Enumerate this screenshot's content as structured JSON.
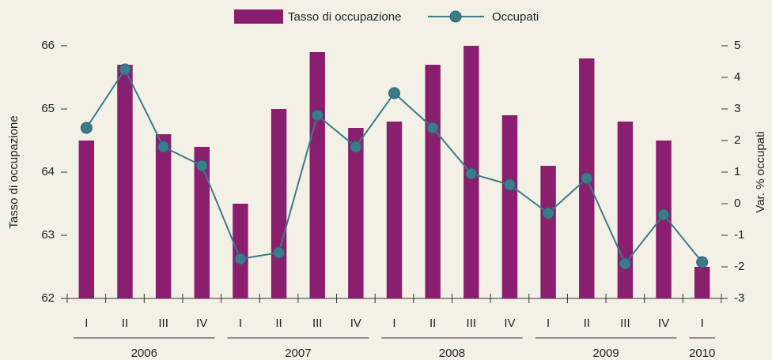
{
  "chart_data": {
    "type": "combo",
    "groups": [
      {
        "label": "2006",
        "categories": [
          "I",
          "II",
          "III",
          "IV"
        ]
      },
      {
        "label": "2007",
        "categories": [
          "I",
          "II",
          "III",
          "IV"
        ]
      },
      {
        "label": "2008",
        "categories": [
          "I",
          "II",
          "III",
          "IV"
        ]
      },
      {
        "label": "2009",
        "categories": [
          "I",
          "II",
          "III",
          "IV"
        ]
      },
      {
        "label": "2010",
        "categories": [
          "I"
        ]
      }
    ],
    "series": [
      {
        "name": "Tasso di occupazione",
        "type": "bar",
        "color": "#8b1f6f",
        "values": [
          64.5,
          65.7,
          64.6,
          64.4,
          63.5,
          65.0,
          65.9,
          64.7,
          64.8,
          65.7,
          66.0,
          64.9,
          64.1,
          65.8,
          64.8,
          64.5,
          62.5
        ]
      },
      {
        "name": "Occupati",
        "type": "line",
        "axis": "y2",
        "color": "#3b7b8c",
        "values": [
          2.4,
          4.25,
          1.8,
          1.2,
          -1.75,
          -1.55,
          2.8,
          1.8,
          3.5,
          2.4,
          0.95,
          0.6,
          -0.3,
          0.8,
          -1.9,
          -0.35,
          -1.85
        ]
      }
    ],
    "ylabel": "Tasso di occupazione",
    "y2label": "Var. % occupati",
    "ylim": [
      62,
      66
    ],
    "yticks": [
      62,
      63,
      64,
      65,
      66
    ],
    "y2lim": [
      -3,
      5
    ],
    "y2ticks": [
      -3,
      -2,
      -1,
      0,
      1,
      2,
      3,
      4,
      5
    ],
    "grid": false
  }
}
